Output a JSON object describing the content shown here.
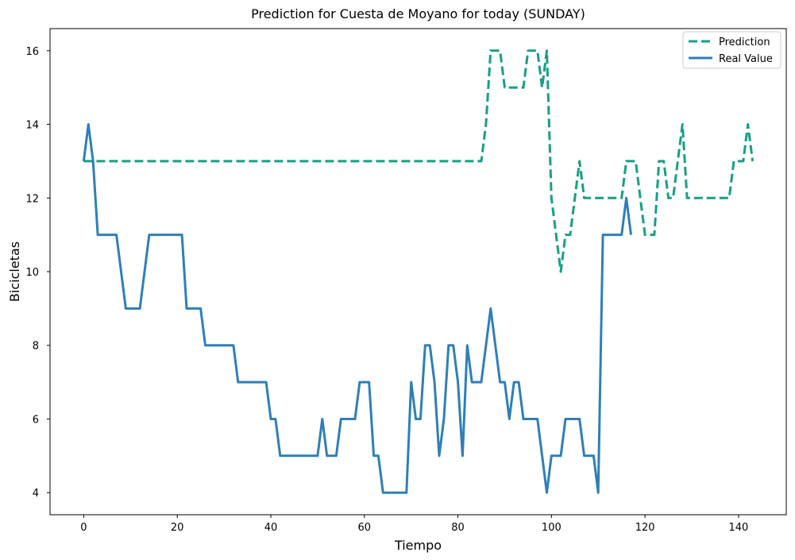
{
  "chart_data": {
    "type": "line",
    "title": "Prediction for Cuesta de Moyano for today (SUNDAY)",
    "xlabel": "Tiempo",
    "ylabel": "Bicicletas",
    "xlim": [
      -7.2,
      150.2
    ],
    "ylim": [
      3.4,
      16.6
    ],
    "xticks": [
      0,
      20,
      40,
      60,
      80,
      100,
      120,
      140
    ],
    "yticks": [
      4,
      6,
      8,
      10,
      12,
      14,
      16
    ],
    "grid": false,
    "legend_position": "top-right",
    "series": [
      {
        "name": "Prediction",
        "color": "#16a085",
        "style": "dashed",
        "points": [
          [
            0,
            13
          ],
          [
            85,
            13
          ],
          [
            86,
            14
          ],
          [
            87,
            16
          ],
          [
            89,
            16
          ],
          [
            90,
            15
          ],
          [
            94,
            15
          ],
          [
            95,
            16
          ],
          [
            97,
            16
          ],
          [
            98,
            15
          ],
          [
            99,
            16
          ],
          [
            100,
            12
          ],
          [
            101,
            11
          ],
          [
            102,
            10
          ],
          [
            103,
            11
          ],
          [
            104,
            11
          ],
          [
            106,
            13
          ],
          [
            107,
            12
          ],
          [
            112,
            12
          ],
          [
            115,
            12
          ],
          [
            116,
            13
          ],
          [
            118,
            13
          ],
          [
            119,
            12
          ],
          [
            120,
            11
          ],
          [
            122,
            11
          ],
          [
            123,
            13
          ],
          [
            124,
            13
          ],
          [
            125,
            12
          ],
          [
            126,
            12
          ],
          [
            128,
            14
          ],
          [
            129,
            12
          ],
          [
            138,
            12
          ],
          [
            139,
            13
          ],
          [
            141,
            13
          ],
          [
            142,
            14
          ],
          [
            143,
            13
          ]
        ]
      },
      {
        "name": "Real Value",
        "color": "#2e7fb8",
        "style": "solid",
        "points": [
          [
            0,
            13
          ],
          [
            1,
            14
          ],
          [
            2,
            13
          ],
          [
            3,
            11
          ],
          [
            7,
            11
          ],
          [
            9,
            9
          ],
          [
            12,
            9
          ],
          [
            14,
            11
          ],
          [
            21,
            11
          ],
          [
            22,
            9
          ],
          [
            25,
            9
          ],
          [
            26,
            8
          ],
          [
            32,
            8
          ],
          [
            33,
            7
          ],
          [
            39,
            7
          ],
          [
            40,
            6
          ],
          [
            41,
            6
          ],
          [
            42,
            5
          ],
          [
            50,
            5
          ],
          [
            51,
            6
          ],
          [
            52,
            5
          ],
          [
            54,
            5
          ],
          [
            55,
            6
          ],
          [
            58,
            6
          ],
          [
            59,
            7
          ],
          [
            61,
            7
          ],
          [
            62,
            5
          ],
          [
            63,
            5
          ],
          [
            64,
            4
          ],
          [
            69,
            4
          ],
          [
            70,
            7
          ],
          [
            71,
            6
          ],
          [
            72,
            6
          ],
          [
            73,
            8
          ],
          [
            74,
            8
          ],
          [
            75,
            7
          ],
          [
            76,
            5
          ],
          [
            77,
            6
          ],
          [
            78,
            8
          ],
          [
            79,
            8
          ],
          [
            80,
            7
          ],
          [
            81,
            5
          ],
          [
            82,
            8
          ],
          [
            83,
            7
          ],
          [
            85,
            7
          ],
          [
            87,
            9
          ],
          [
            89,
            7
          ],
          [
            90,
            7
          ],
          [
            91,
            6
          ],
          [
            92,
            7
          ],
          [
            93,
            7
          ],
          [
            94,
            6
          ],
          [
            97,
            6
          ],
          [
            99,
            4
          ],
          [
            100,
            5
          ],
          [
            102,
            5
          ],
          [
            103,
            6
          ],
          [
            106,
            6
          ],
          [
            107,
            5
          ],
          [
            109,
            5
          ],
          [
            110,
            4
          ],
          [
            111,
            11
          ],
          [
            115,
            11
          ],
          [
            116,
            12
          ],
          [
            117,
            11
          ]
        ]
      }
    ]
  }
}
